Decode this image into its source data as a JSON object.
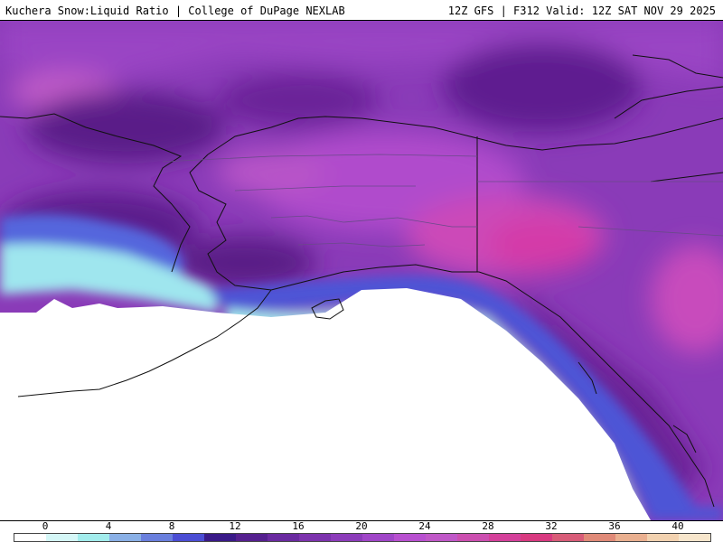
{
  "header": {
    "title": "Kuchera Snow:Liquid Ratio | College of DuPage NEXLAB",
    "run_info": "12Z GFS | F312 Valid: 12Z SAT NOV 29 2025"
  },
  "map": {
    "region": "Alaska",
    "legend": {
      "ticks": [
        "0",
        "4",
        "8",
        "12",
        "16",
        "20",
        "24",
        "28",
        "32",
        "36",
        "40"
      ],
      "colors": [
        "#ffffff",
        "#d5f7f7",
        "#a2ecec",
        "#8ab0e6",
        "#6a7fdd",
        "#4b4dd4",
        "#3a1a88",
        "#55208f",
        "#6a2aa0",
        "#7c33ad",
        "#8c3cba",
        "#a046c8",
        "#b850d0",
        "#c058c8",
        "#cc4fb0",
        "#d4409a",
        "#d83a80",
        "#d85c78",
        "#e08a78",
        "#eab090",
        "#f2d2b0",
        "#f7e6cc"
      ],
      "accent_colors": {
        "deep_purple": "#5a1a8a",
        "magenta": "#d44ab0",
        "cyan": "#a8ecec"
      }
    }
  }
}
